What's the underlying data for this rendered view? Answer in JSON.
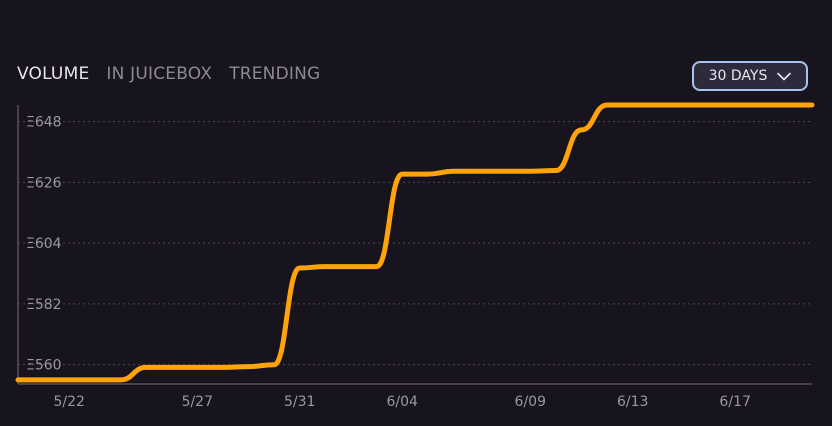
{
  "tabs": [
    {
      "label": "VOLUME",
      "active": true
    },
    {
      "label": "IN JUICEBOX",
      "active": false
    },
    {
      "label": "TRENDING",
      "active": false
    }
  ],
  "range_selector": {
    "label": "30 DAYS",
    "icon": "chevron-down-icon"
  },
  "colors": {
    "line": "#ffa30a",
    "background": "#18141d",
    "grid": "#4a4552"
  },
  "chart_data": {
    "type": "line",
    "grid": "horizontal-dashed",
    "ylim": [
      553,
      654
    ],
    "yticks": [
      560,
      582,
      604,
      626,
      648
    ],
    "ytick_labels": [
      "Ξ560",
      "Ξ582",
      "Ξ604",
      "Ξ626",
      "Ξ648"
    ],
    "xticks": [
      "5/22",
      "5/27",
      "5/31",
      "6/04",
      "6/09",
      "6/13",
      "6/17"
    ],
    "x_range": [
      "5/20",
      "6/20"
    ],
    "series": [
      {
        "x": [
          "5/20",
          "5/21",
          "5/22",
          "5/23",
          "5/24",
          "5/25",
          "5/26",
          "5/27",
          "5/28",
          "5/29",
          "5/30",
          "5/31",
          "6/01",
          "6/02",
          "6/03",
          "6/04",
          "6/05",
          "6/06",
          "6/07",
          "6/08",
          "6/09",
          "6/10",
          "6/11",
          "6/12",
          "6/13",
          "6/14",
          "6/15",
          "6/16",
          "6/17",
          "6/18",
          "6/19",
          "6/20"
        ],
        "y": [
          554.5,
          554.5,
          554.5,
          554.5,
          554.5,
          559,
          559,
          559,
          559,
          559.3,
          560,
          595,
          595.5,
          595.5,
          595.5,
          629,
          629,
          630,
          630,
          630,
          630,
          630.3,
          645,
          654,
          654,
          654,
          654,
          654,
          654,
          654,
          654,
          654
        ]
      }
    ]
  }
}
